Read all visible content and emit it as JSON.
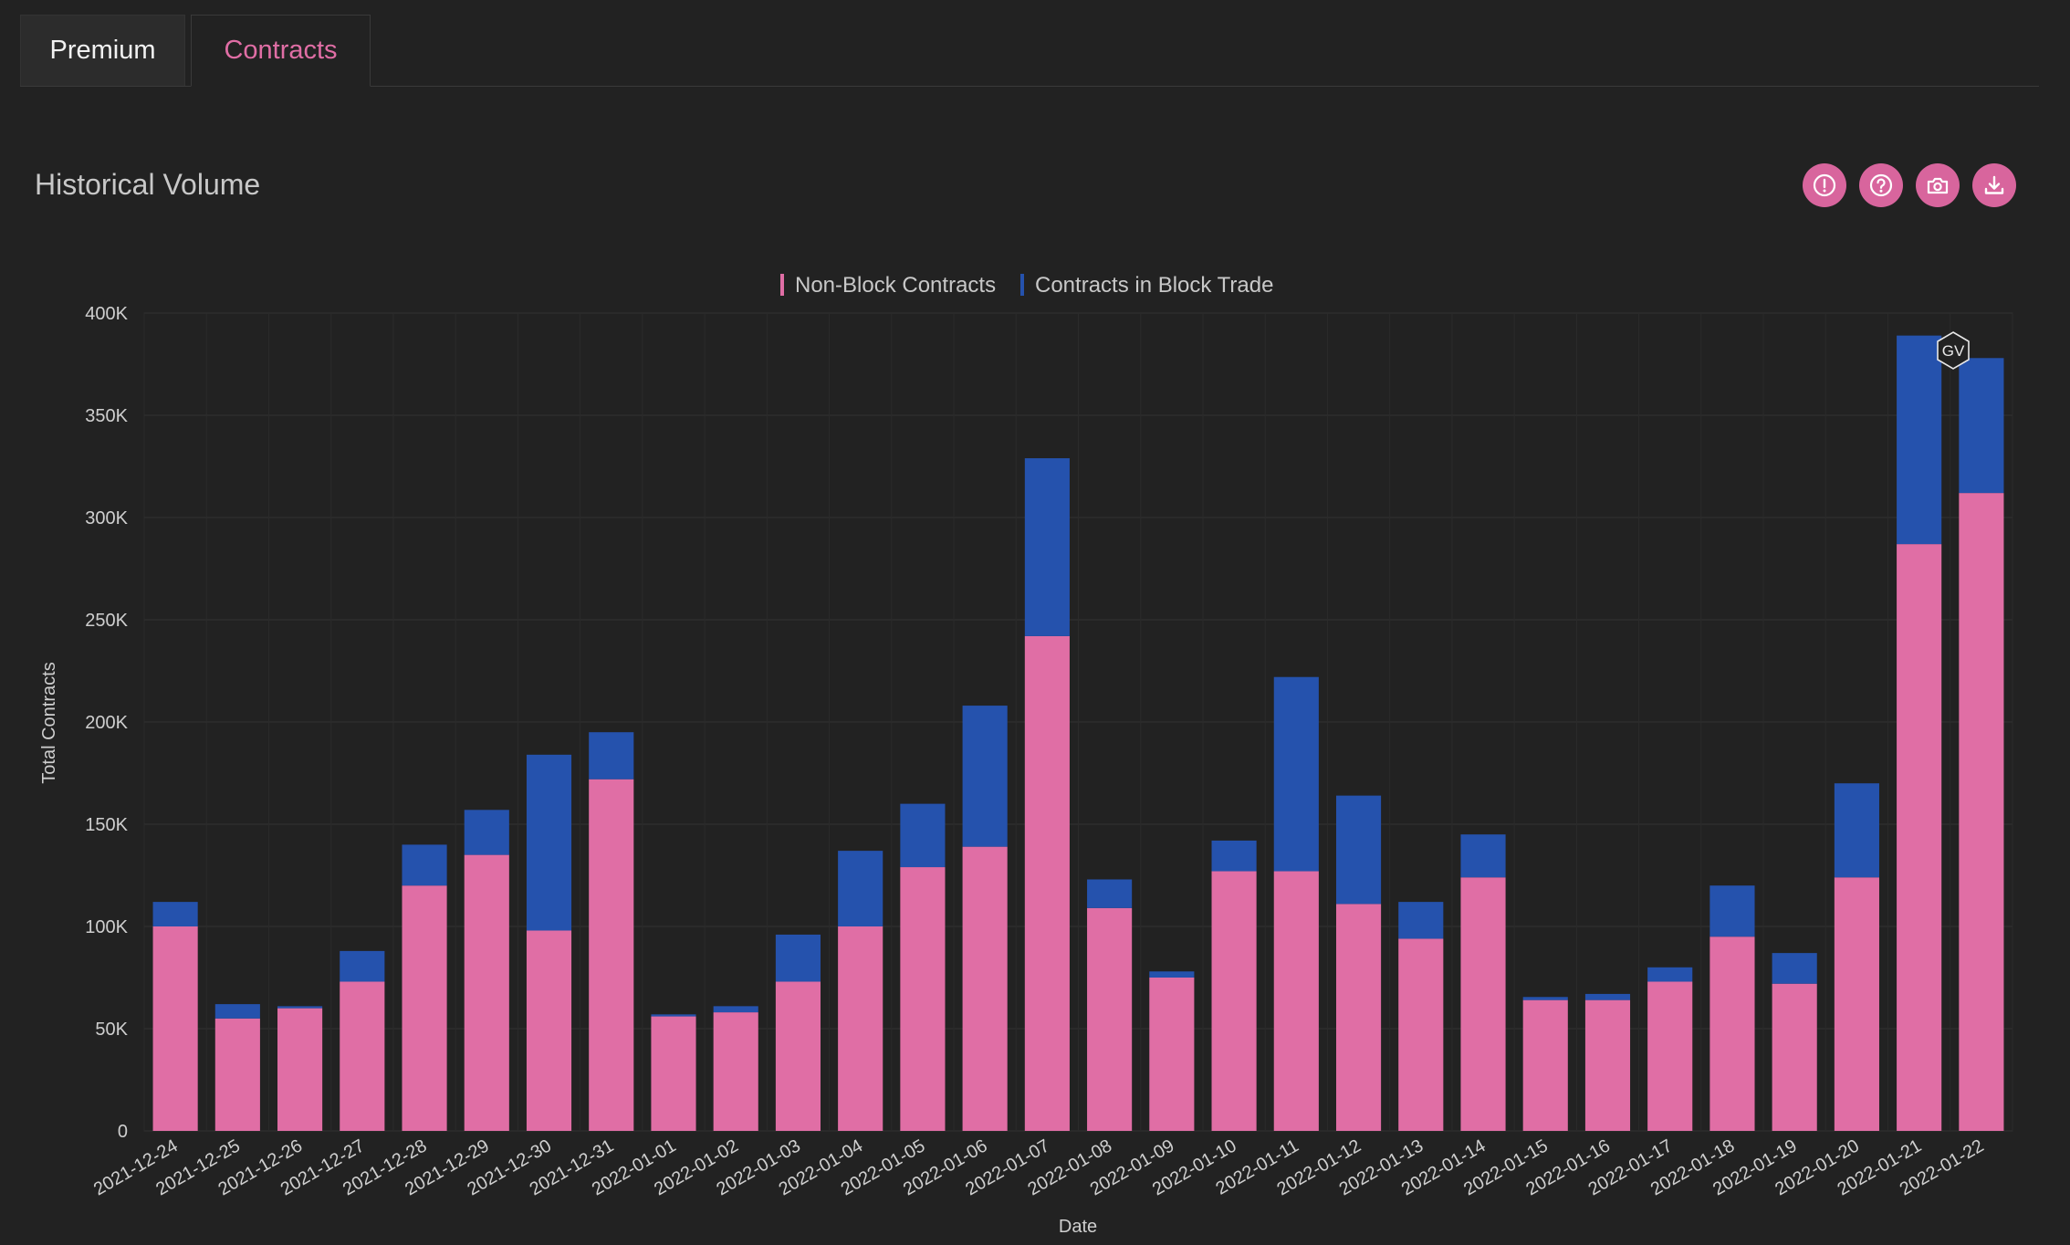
{
  "tabs": [
    {
      "label": "Premium",
      "active": false
    },
    {
      "label": "Contracts",
      "active": true
    }
  ],
  "panel": {
    "title": "Historical Volume",
    "actions": [
      {
        "icon": "alert-icon"
      },
      {
        "icon": "help-icon"
      },
      {
        "icon": "camera-icon"
      },
      {
        "icon": "download-icon"
      }
    ]
  },
  "badge": {
    "label": "GV"
  },
  "colors": {
    "non_block": "#e06ea5",
    "block": "#2552ad",
    "accent": "#d8659d",
    "background": "#222222"
  },
  "chart_data": {
    "type": "bar",
    "stacked": true,
    "xlabel": "Date",
    "ylabel": "Total Contracts",
    "ylim": [
      0,
      400000
    ],
    "yticks": [
      0,
      50000,
      100000,
      150000,
      200000,
      250000,
      300000,
      350000,
      400000
    ],
    "ytick_labels": [
      "0",
      "50K",
      "100K",
      "150K",
      "200K",
      "250K",
      "300K",
      "350K",
      "400K"
    ],
    "legend_position": "top-center",
    "grid": true,
    "categories": [
      "2021-12-24",
      "2021-12-25",
      "2021-12-26",
      "2021-12-27",
      "2021-12-28",
      "2021-12-29",
      "2021-12-30",
      "2021-12-31",
      "2022-01-01",
      "2022-01-02",
      "2022-01-03",
      "2022-01-04",
      "2022-01-05",
      "2022-01-06",
      "2022-01-07",
      "2022-01-08",
      "2022-01-09",
      "2022-01-10",
      "2022-01-11",
      "2022-01-12",
      "2022-01-13",
      "2022-01-14",
      "2022-01-15",
      "2022-01-16",
      "2022-01-17",
      "2022-01-18",
      "2022-01-19",
      "2022-01-20",
      "2022-01-21",
      "2022-01-22"
    ],
    "series": [
      {
        "name": "Non-Block Contracts",
        "color": "#e06ea5",
        "values": [
          100000,
          55000,
          60000,
          73000,
          120000,
          135000,
          98000,
          172000,
          56000,
          58000,
          73000,
          100000,
          129000,
          139000,
          242000,
          109000,
          75000,
          127000,
          127000,
          111000,
          94000,
          124000,
          64000,
          64000,
          73000,
          95000,
          72000,
          124000,
          287000,
          312000
        ]
      },
      {
        "name": "Contracts in Block Trade",
        "color": "#2552ad",
        "values": [
          12000,
          7000,
          1000,
          15000,
          20000,
          22000,
          86000,
          23000,
          1000,
          3000,
          23000,
          37000,
          31000,
          69000,
          87000,
          14000,
          3000,
          15000,
          95000,
          53000,
          18000,
          21000,
          1500,
          3000,
          7000,
          25000,
          15000,
          46000,
          102000,
          66000
        ]
      }
    ]
  }
}
